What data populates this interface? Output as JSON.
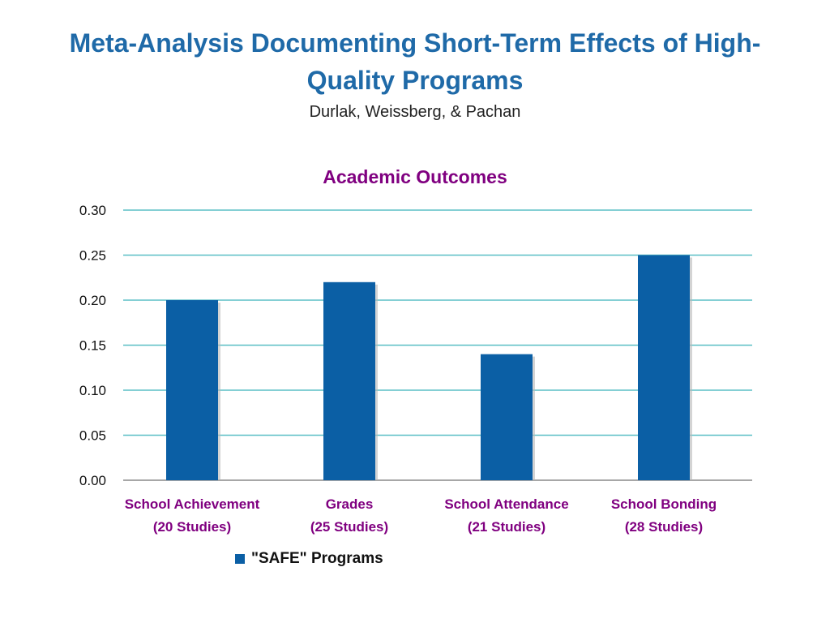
{
  "slide": {
    "title_line1": "Meta-Analysis Documenting Short-Term Effects of High-",
    "title_line2": "Quality Programs",
    "subtitle": "Durlak, Weissberg, & Pachan"
  },
  "colors": {
    "title": "#1f6aa8",
    "bar": "#0b5fa5",
    "gridline": "#5bbfc6",
    "chart_title": "#800080",
    "category_label": "#800080"
  },
  "chart_data": {
    "type": "bar",
    "title": "Academic Outcomes",
    "categories": [
      [
        "School Achievement",
        "(20 Studies)"
      ],
      [
        "Grades",
        "(25 Studies)"
      ],
      [
        "School Attendance",
        "(21 Studies)"
      ],
      [
        "School Bonding",
        "(28 Studies)"
      ]
    ],
    "series": [
      {
        "name": "\"SAFE\" Programs",
        "values": [
          0.2,
          0.22,
          0.14,
          0.25
        ]
      }
    ],
    "ylim": [
      0,
      0.3
    ],
    "yticks": [
      "0.00",
      "0.05",
      "0.10",
      "0.15",
      "0.20",
      "0.25",
      "0.30"
    ],
    "grid": true,
    "legend_position": "bottom-left"
  }
}
